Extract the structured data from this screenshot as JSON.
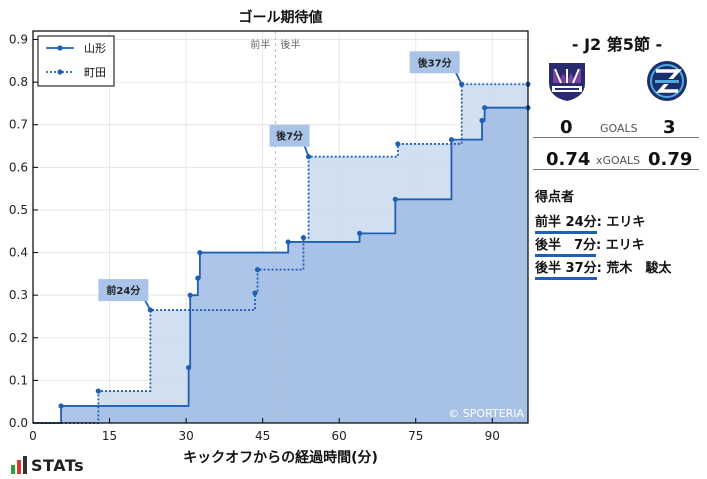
{
  "chart_data": {
    "type": "line",
    "title": "ゴール期待値",
    "xlabel": "キックオフからの経過時間(分)",
    "ylabel": "",
    "xlim": [
      0,
      97
    ],
    "ylim": [
      0,
      0.92
    ],
    "xticks": [
      0,
      15,
      30,
      45,
      60,
      75,
      90
    ],
    "yticks": [
      0.0,
      0.1,
      0.2,
      0.3,
      0.4,
      0.5,
      0.6,
      0.7,
      0.8,
      0.9
    ],
    "grid": true,
    "legend_position": "top-left",
    "halftime_x": 47.5,
    "halftime_labels": [
      "前半",
      "後半"
    ],
    "watermark": "© SPORTERIA",
    "series": [
      {
        "name": "山形",
        "style": "solid",
        "color": "#1f5fb4",
        "fill": "#a3bfe6",
        "points": [
          [
            0,
            0.0
          ],
          [
            5.5,
            0.04
          ],
          [
            30.5,
            0.13
          ],
          [
            30.8,
            0.3
          ],
          [
            32.3,
            0.34
          ],
          [
            32.7,
            0.4
          ],
          [
            50,
            0.425
          ],
          [
            64,
            0.445
          ],
          [
            71,
            0.525
          ],
          [
            82,
            0.665
          ],
          [
            88,
            0.71
          ],
          [
            88.5,
            0.74
          ]
        ],
        "end_x": 97
      },
      {
        "name": "町田",
        "style": "dotted",
        "color": "#1f5fb4",
        "fill": "#ccdcf0",
        "points": [
          [
            0,
            0.0
          ],
          [
            12.8,
            0.075
          ],
          [
            23,
            0.265
          ],
          [
            43.5,
            0.305
          ],
          [
            44,
            0.36
          ],
          [
            53,
            0.435
          ],
          [
            54,
            0.625
          ],
          [
            71.5,
            0.655
          ],
          [
            84,
            0.795
          ]
        ],
        "end_x": 97
      }
    ],
    "annotations": [
      {
        "text": "前24分",
        "series": "町田",
        "x": 23,
        "y": 0.265
      },
      {
        "text": "後7分",
        "series": "町田",
        "x": 54,
        "y": 0.625
      },
      {
        "text": "後37分",
        "series": "町田",
        "x": 84,
        "y": 0.795
      }
    ]
  },
  "match": {
    "title": "- J2 第5節 -",
    "home_logo": "montedio-yamagata-logo",
    "away_logo": "fc-machida-zelvia-logo",
    "home_goals": "0",
    "away_goals": "3",
    "goals_label": "GOALS",
    "home_xg": "0.74",
    "away_xg": "0.79",
    "xg_label": "xGOALS"
  },
  "scorers": {
    "title": "得点者",
    "items": [
      {
        "time": "前半 24分",
        "name": ": エリキ"
      },
      {
        "time": "後半　7分",
        "name": ": エリキ"
      },
      {
        "time": "後半 37分",
        "name": ": 荒木　駿太"
      }
    ]
  },
  "brand": {
    "name": "STATs",
    "bar_colors": [
      "#2e9e46",
      "#e0342c",
      "#333333"
    ]
  }
}
